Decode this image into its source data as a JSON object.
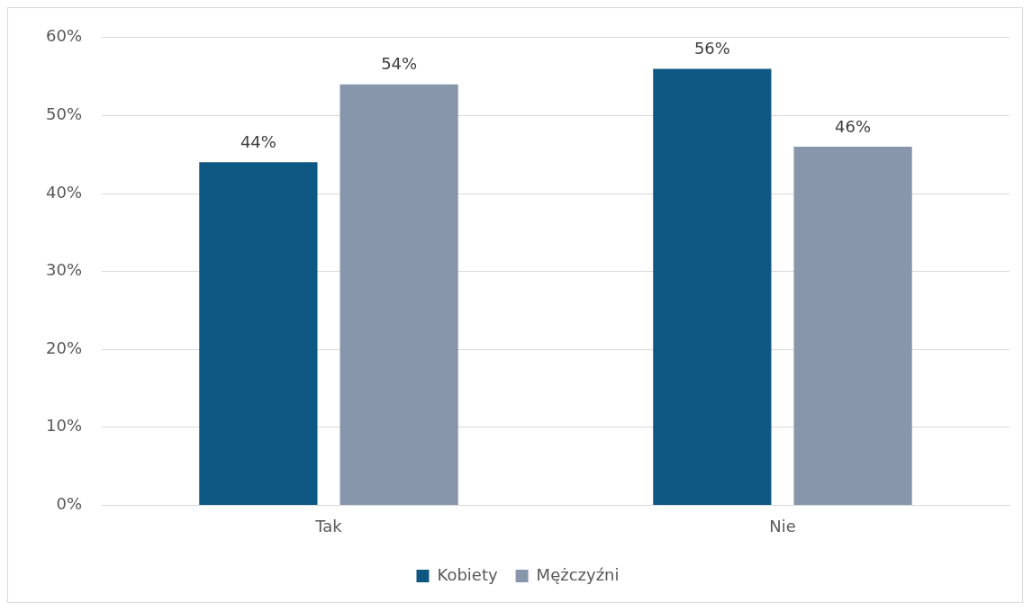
{
  "chart_data": {
    "type": "bar",
    "categories": [
      "Tak",
      "Nie"
    ],
    "series": [
      {
        "name": "Kobiety",
        "color": "#0e5783",
        "values": [
          44,
          56
        ],
        "value_labels": [
          "44%",
          "56%"
        ]
      },
      {
        "name": "Mężczyźni",
        "color": "#8896ab",
        "values": [
          54,
          46
        ],
        "value_labels": [
          "54%",
          "46%"
        ]
      }
    ],
    "ylim": [
      0,
      60
    ],
    "yticks": [
      {
        "value": 0,
        "label": "0%"
      },
      {
        "value": 10,
        "label": "10%"
      },
      {
        "value": 20,
        "label": "20%"
      },
      {
        "value": 30,
        "label": "30%"
      },
      {
        "value": 40,
        "label": "40%"
      },
      {
        "value": 50,
        "label": "50%"
      },
      {
        "value": 60,
        "label": "60%"
      }
    ],
    "grid": "y",
    "legend": "bottom"
  }
}
